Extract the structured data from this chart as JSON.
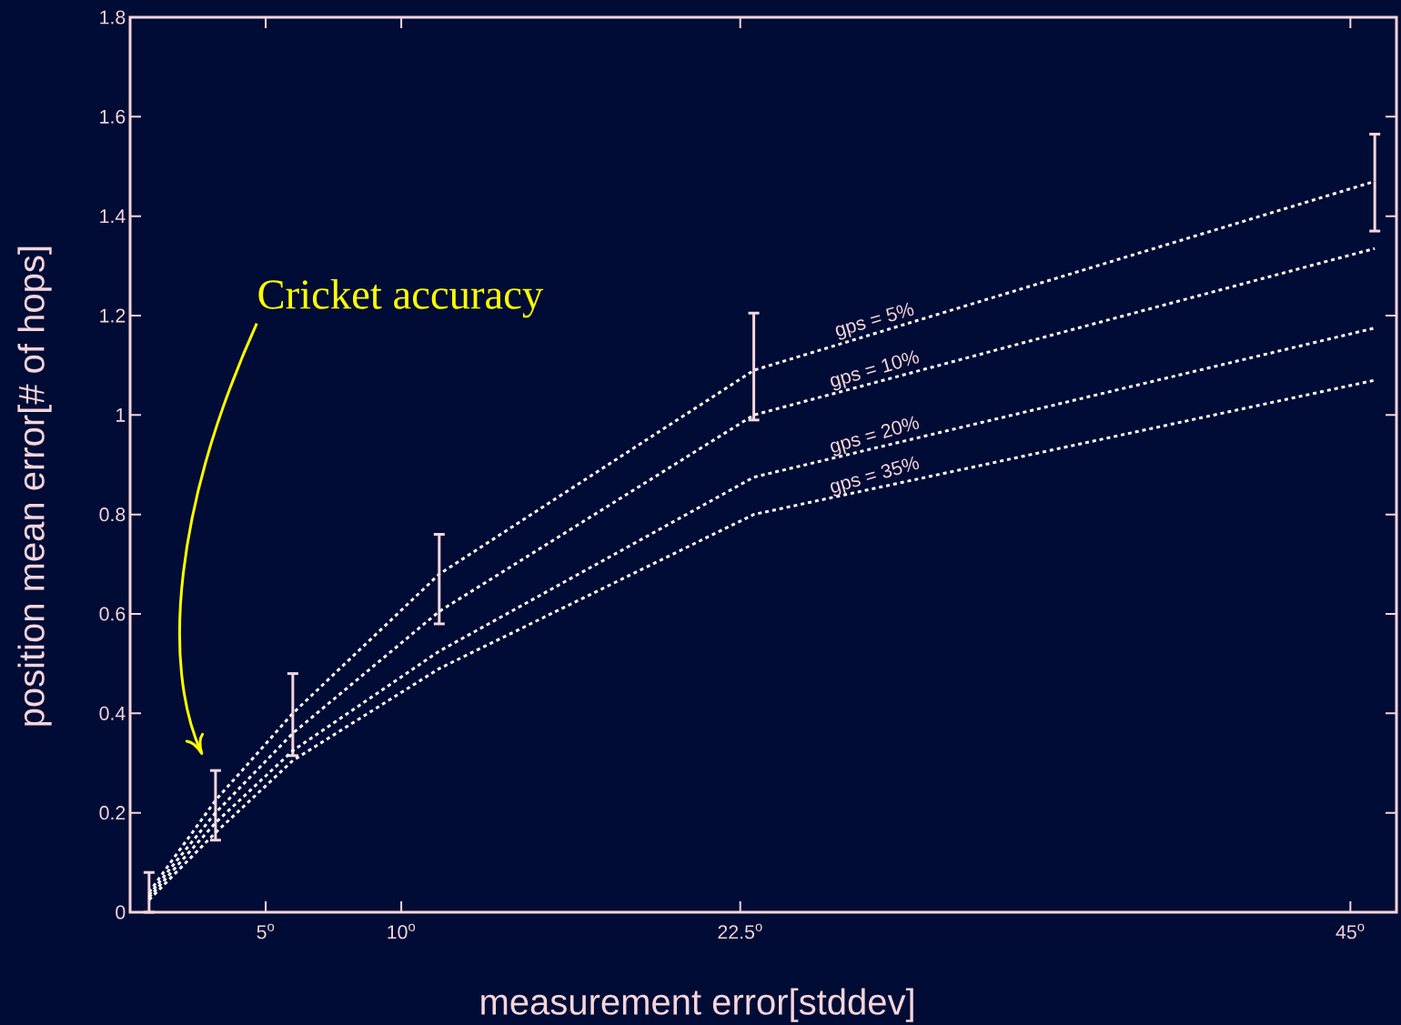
{
  "chart_data": {
    "type": "line",
    "xlabel": "measurement error[stddev]",
    "ylabel": "position mean error[# of hops]",
    "x": [
      0.7,
      3.15,
      6.0,
      11.4,
      23.0,
      45.9
    ],
    "series": [
      {
        "name": "gps = 5%",
        "color": "#ffffff",
        "values": [
          0.04,
          0.225,
          0.4,
          0.68,
          1.09,
          1.47
        ],
        "errors": [
          [
            0,
            0.08
          ],
          [
            0.145,
            0.285
          ],
          [
            0.315,
            0.48
          ],
          [
            0.58,
            0.76
          ],
          [
            0.99,
            1.205
          ],
          [
            1.37,
            1.565
          ]
        ]
      },
      {
        "name": "gps = 10%",
        "color": "#ffffff",
        "values": [
          0.035,
          0.2,
          0.36,
          0.605,
          1.0,
          1.335
        ]
      },
      {
        "name": "gps = 20%",
        "color": "#ffffff",
        "values": [
          0.03,
          0.18,
          0.325,
          0.525,
          0.875,
          1.175
        ]
      },
      {
        "name": "gps = 35%",
        "color": "#ffffff",
        "values": [
          0.025,
          0.16,
          0.305,
          0.49,
          0.8,
          1.07
        ]
      }
    ],
    "xlim": [
      0,
      46.7
    ],
    "ylim": [
      0,
      1.8
    ],
    "xticks": [
      {
        "value": 5,
        "label": "5$^{o}$"
      },
      {
        "value": 10,
        "label": "10$^{o}$"
      },
      {
        "value": 22.5,
        "label": "22.5$^{o}$"
      },
      {
        "value": 45,
        "label": "45$^{o}$"
      }
    ],
    "yticks": [
      0,
      0.2,
      0.4,
      0.6,
      0.8,
      1,
      1.2,
      1.4,
      1.6,
      1.8
    ],
    "annotations": [
      "Cricket accuracy"
    ],
    "grid": false,
    "marker": "none",
    "line_style": "dotted"
  }
}
